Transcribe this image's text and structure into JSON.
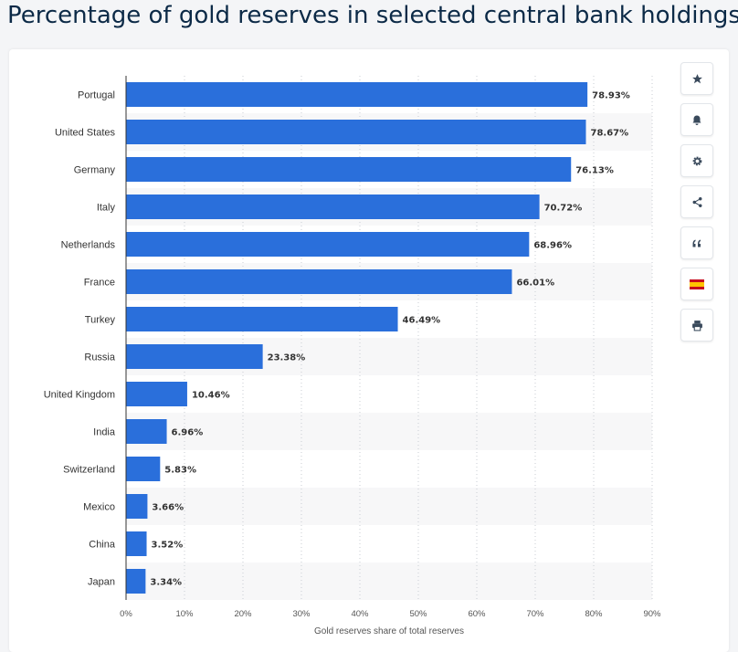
{
  "title": "Percentage of gold reserves in selected central bank holdings",
  "toolbar": {
    "buttons": [
      {
        "name": "favorite-button",
        "icon": "star-icon"
      },
      {
        "name": "notification-button",
        "icon": "bell-icon"
      },
      {
        "name": "settings-button",
        "icon": "gear-icon"
      },
      {
        "name": "share-button",
        "icon": "share-icon"
      },
      {
        "name": "cite-button",
        "icon": "quote-icon"
      },
      {
        "name": "language-button",
        "icon": "spain-flag-icon"
      },
      {
        "name": "print-button",
        "icon": "printer-icon"
      }
    ]
  },
  "chart_data": {
    "type": "bar",
    "orientation": "horizontal",
    "categories": [
      "Portugal",
      "United States",
      "Germany",
      "Italy",
      "Netherlands",
      "France",
      "Turkey",
      "Russia",
      "United Kingdom",
      "India",
      "Switzerland",
      "Mexico",
      "China",
      "Japan"
    ],
    "values": [
      78.93,
      78.67,
      76.13,
      70.72,
      68.96,
      66.01,
      46.49,
      23.38,
      10.46,
      6.96,
      5.83,
      3.66,
      3.52,
      3.34
    ],
    "value_labels": [
      "78.93%",
      "78.67%",
      "76.13%",
      "70.72%",
      "68.96%",
      "66.01%",
      "46.49%",
      "23.38%",
      "10.46%",
      "6.96%",
      "5.83%",
      "3.66%",
      "3.52%",
      "3.34%"
    ],
    "xlabel": "Gold reserves share of total reserves",
    "ylabel": "",
    "xlim": [
      0,
      90
    ],
    "xticks": [
      0,
      10,
      20,
      30,
      40,
      50,
      60,
      70,
      80,
      90
    ],
    "xtick_labels": [
      "0%",
      "10%",
      "20%",
      "30%",
      "40%",
      "50%",
      "60%",
      "70%",
      "80%",
      "90%"
    ],
    "grid": "vertical dotted",
    "bar_color": "#2a6fdb"
  }
}
